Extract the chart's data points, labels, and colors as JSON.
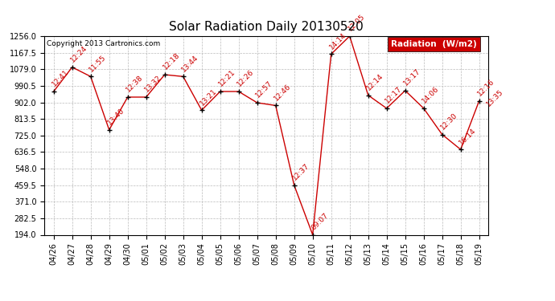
{
  "title": "Solar Radiation Daily 20130520",
  "copyright_text": "Copyright 2013 Cartronics.com",
  "legend_label": "Radiation  (W/m2)",
  "dates": [
    "04/26",
    "04/27",
    "04/28",
    "04/29",
    "04/30",
    "05/01",
    "05/02",
    "05/03",
    "05/04",
    "05/05",
    "05/06",
    "05/07",
    "05/08",
    "05/09",
    "05/10",
    "05/11",
    "05/12",
    "05/13",
    "05/14",
    "05/15",
    "05/16",
    "05/17",
    "05/18",
    "05/19"
  ],
  "values": [
    960,
    1090,
    1040,
    755,
    930,
    930,
    1050,
    1040,
    860,
    960,
    960,
    900,
    885,
    459,
    194,
    1160,
    1256,
    940,
    870,
    965,
    870,
    730,
    650,
    910
  ],
  "point_labels": [
    [
      0,
      "12:41"
    ],
    [
      1,
      "12:24"
    ],
    [
      2,
      "11:55"
    ],
    [
      3,
      "13:40"
    ],
    [
      4,
      "12:38"
    ],
    [
      5,
      "13:32"
    ],
    [
      6,
      "12:18"
    ],
    [
      7,
      "13:44"
    ],
    [
      8,
      "13:21"
    ],
    [
      9,
      "12:21"
    ],
    [
      10,
      "12:26"
    ],
    [
      11,
      "12:57"
    ],
    [
      12,
      "12:46"
    ],
    [
      13,
      "12:37"
    ],
    [
      14,
      "09:07"
    ],
    [
      15,
      "14:14"
    ],
    [
      16,
      "12:05"
    ],
    [
      17,
      "12:14"
    ],
    [
      18,
      "12:17"
    ],
    [
      19,
      "13:17"
    ],
    [
      20,
      "14:06"
    ],
    [
      21,
      "12:30"
    ],
    [
      22,
      "16:14"
    ],
    [
      23,
      "12:16"
    ]
  ],
  "extra_label": [
    23,
    "13:35"
  ],
  "yticks": [
    194.0,
    282.5,
    371.0,
    459.5,
    548.0,
    636.5,
    725.0,
    813.5,
    902.0,
    990.5,
    1079.0,
    1167.5,
    1256.0
  ],
  "ymin": 194.0,
  "ymax": 1256.0,
  "line_color": "#cc0000",
  "marker_color": "#000000",
  "bg_color": "#ffffff",
  "grid_color": "#bbbbbb",
  "title_fontsize": 11,
  "tick_fontsize": 7,
  "legend_bg_color": "#cc0000",
  "legend_text_color": "#ffffff",
  "anno_fontsize": 6.5
}
